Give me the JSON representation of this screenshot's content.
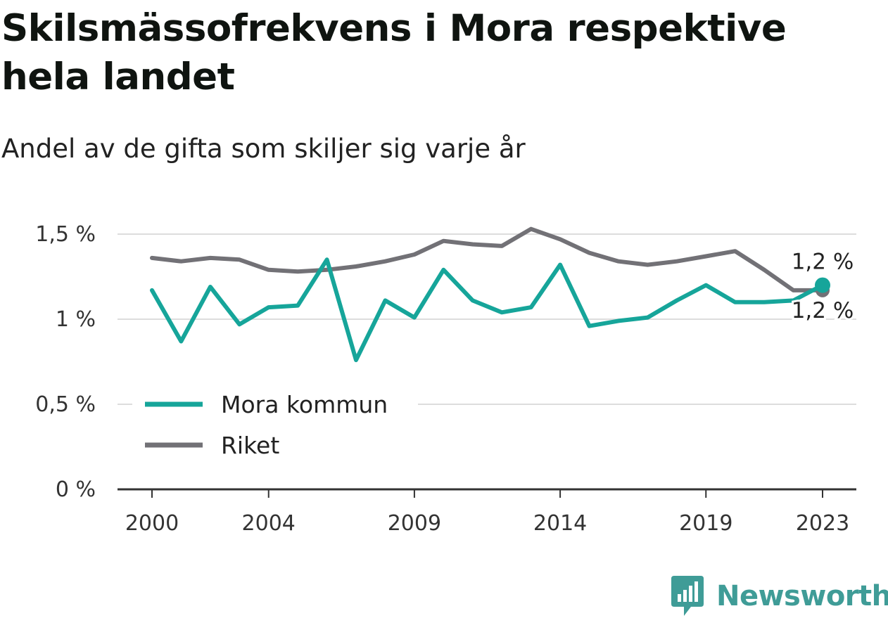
{
  "title": "Skilsmässofrekvens i Mora respektive hela landet",
  "subtitle": "Andel av de gifta som skiljer sig varje år",
  "brand": {
    "name": "Newsworthy",
    "icon": "newsworthy-logo-icon",
    "color": "#3f9c97"
  },
  "chart_data": {
    "type": "line",
    "title": "Skilsmässofrekvens i Mora respektive hela landet",
    "subtitle": "Andel av de gifta som skiljer sig varje år",
    "x": [
      2000,
      2001,
      2002,
      2003,
      2004,
      2005,
      2006,
      2007,
      2008,
      2009,
      2010,
      2011,
      2012,
      2013,
      2014,
      2015,
      2016,
      2017,
      2018,
      2019,
      2020,
      2021,
      2022,
      2023
    ],
    "x_tick_labels": [
      "2000",
      "2004",
      "2009",
      "2014",
      "2019",
      "2023"
    ],
    "x_ticks": [
      2000,
      2004,
      2009,
      2014,
      2019,
      2023
    ],
    "y_tick_labels": [
      "0 %",
      "0,5 %",
      "1 %",
      "1,5 %"
    ],
    "y_ticks": [
      0,
      0.5,
      1.0,
      1.5
    ],
    "ylim": [
      0,
      1.5
    ],
    "xlim": [
      2000,
      2023
    ],
    "grid": true,
    "legend_position": "bottom-left",
    "series": [
      {
        "name": "Mora kommun",
        "color": "#16a59a",
        "values": [
          1.17,
          0.87,
          1.19,
          0.97,
          1.07,
          1.08,
          1.35,
          0.76,
          1.11,
          1.01,
          1.29,
          1.11,
          1.04,
          1.07,
          1.32,
          0.96,
          0.99,
          1.01,
          1.11,
          1.2,
          1.1,
          1.1,
          1.11,
          1.2
        ],
        "end_label": "1,2 %"
      },
      {
        "name": "Riket",
        "color": "#727176",
        "values": [
          1.36,
          1.34,
          1.36,
          1.35,
          1.29,
          1.28,
          1.29,
          1.31,
          1.34,
          1.38,
          1.46,
          1.44,
          1.43,
          1.53,
          1.47,
          1.39,
          1.34,
          1.32,
          1.34,
          1.37,
          1.4,
          1.29,
          1.17,
          1.17
        ],
        "end_label": "1,2 %"
      }
    ]
  }
}
